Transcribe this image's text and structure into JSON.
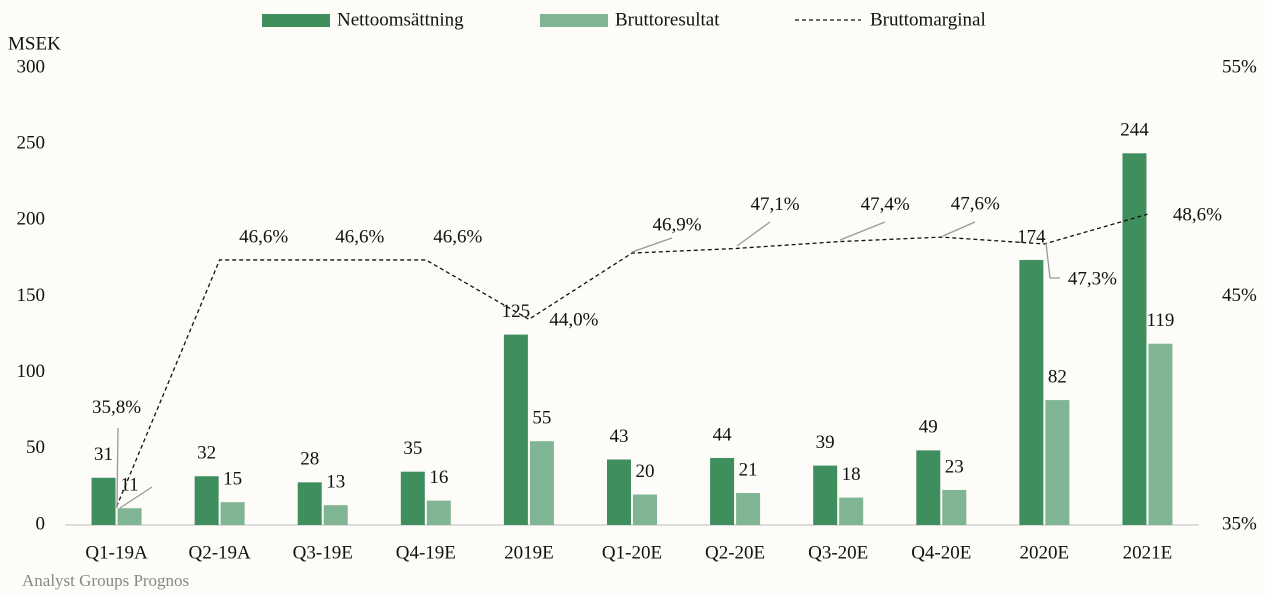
{
  "chart_data": {
    "type": "bar",
    "y_axis_label": "MSEK",
    "source": "Analyst Groups Prognos",
    "categories": [
      "Q1-19A",
      "Q2-19A",
      "Q3-19E",
      "Q4-19E",
      "2019E",
      "Q1-20E",
      "Q2-20E",
      "Q3-20E",
      "Q4-20E",
      "2020E",
      "2021E"
    ],
    "series": [
      {
        "name": "Nettoomsättning",
        "type": "bar",
        "color": "#3f8f5e",
        "values": [
          31,
          32,
          28,
          35,
          125,
          43,
          44,
          39,
          49,
          174,
          244
        ]
      },
      {
        "name": "Bruttoresultat",
        "type": "bar",
        "color": "#7fb593",
        "values": [
          11,
          15,
          13,
          16,
          55,
          20,
          21,
          18,
          23,
          82,
          119
        ]
      },
      {
        "name": "Bruttomarginal",
        "type": "line",
        "axis": "y2",
        "color": "#111111",
        "dashed": true,
        "values": [
          35.8,
          46.6,
          46.6,
          46.6,
          44.0,
          46.9,
          47.1,
          47.4,
          47.6,
          47.3,
          48.6
        ],
        "value_labels": [
          "35,8%",
          "46,6%",
          "46,6%",
          "46,6%",
          "44,0%",
          "46,9%",
          "47,1%",
          "47,4%",
          "47,6%",
          "47,3%",
          "48,6%"
        ]
      }
    ],
    "ylim": [
      0,
      300
    ],
    "yticks": [
      0,
      50,
      100,
      150,
      200,
      250,
      300
    ],
    "y2lim": [
      35,
      55
    ],
    "y2ticks": [
      {
        "value": 35,
        "label": "35%"
      },
      {
        "value": 45,
        "label": "45%"
      },
      {
        "value": 55,
        "label": "55%"
      }
    ],
    "grid": false,
    "legend": "top"
  }
}
